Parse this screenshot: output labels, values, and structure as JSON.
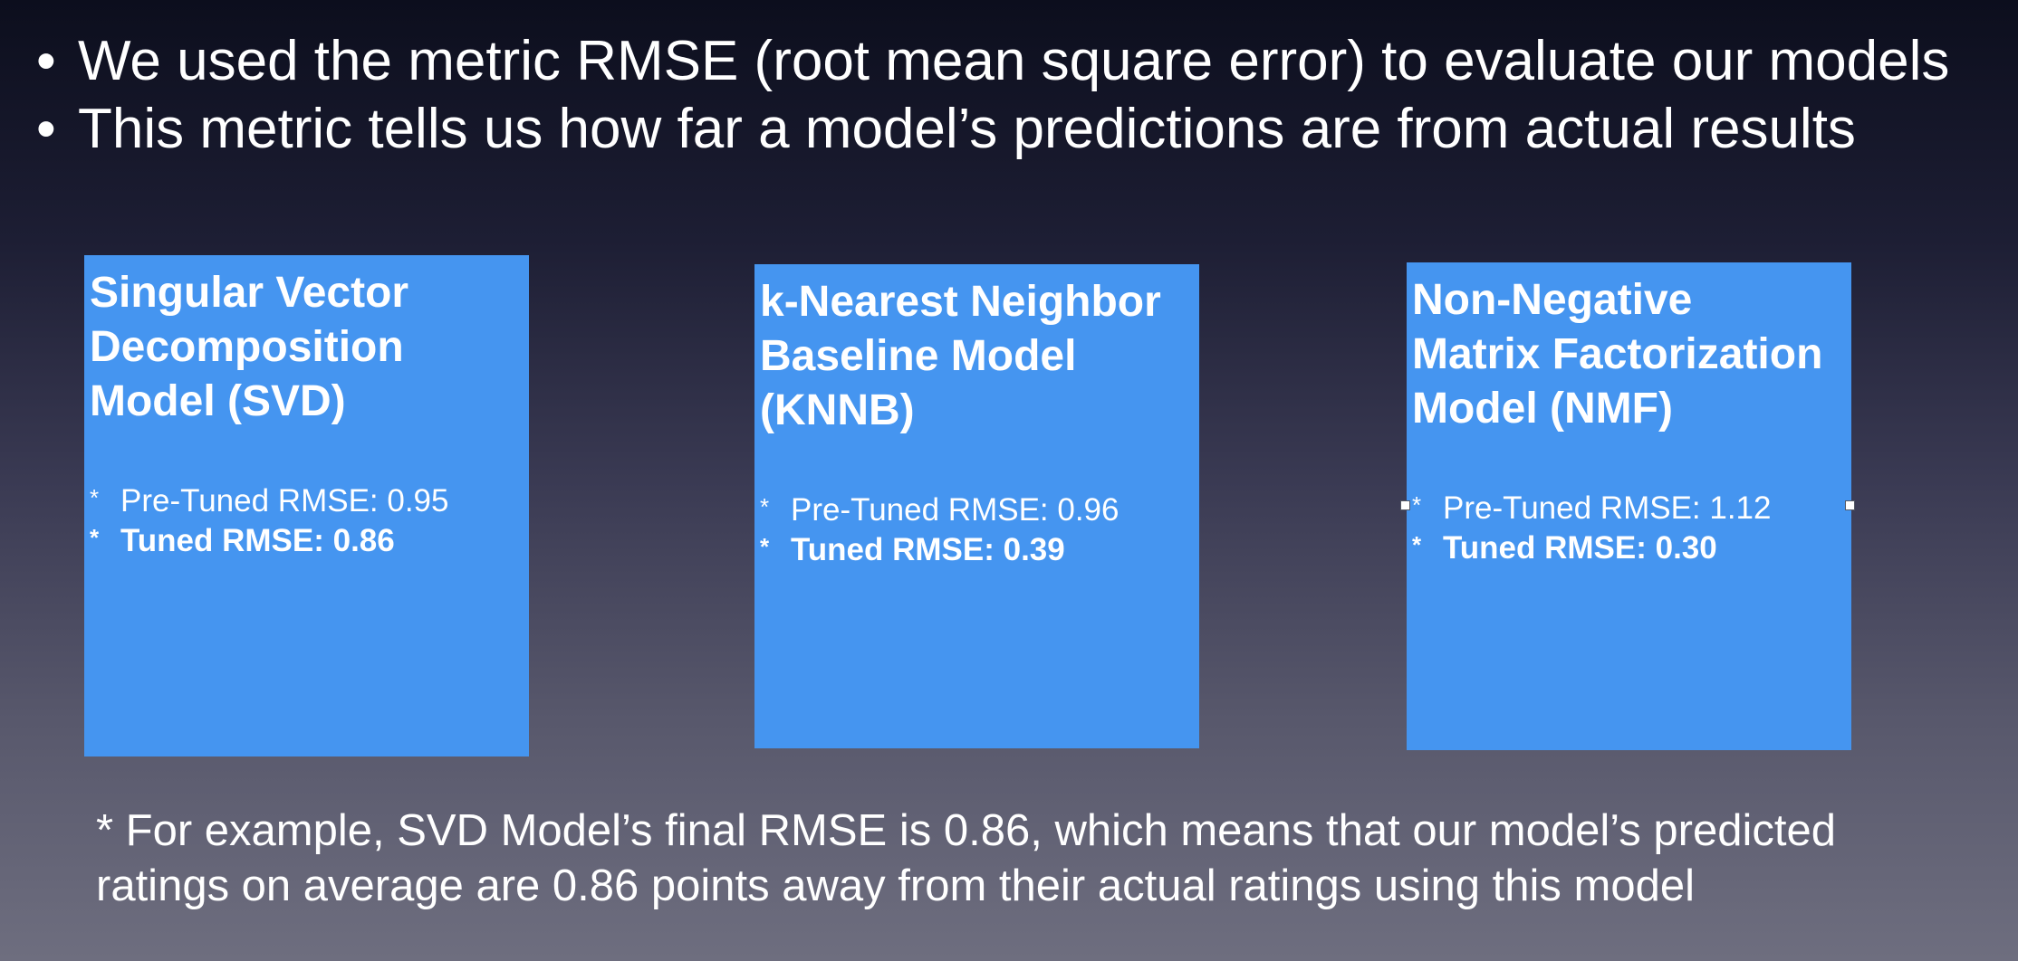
{
  "slide": {
    "bullets": [
      "We used the metric RMSE (root mean square error) to evaluate our models",
      "This metric tells us how far a model’s predictions are from actual results"
    ],
    "cards": [
      {
        "title_lines": [
          "Singular Vector",
          "Decomposition",
          "Model (SVD)"
        ],
        "pre_tuned": "Pre-Tuned RMSE: 0.95",
        "tuned": "Tuned RMSE: 0.86"
      },
      {
        "title_lines": [
          "k-Nearest Neighbor",
          "Baseline Model",
          "(KNNB)"
        ],
        "pre_tuned": "Pre-Tuned RMSE: 0.96",
        "tuned": "Tuned RMSE: 0.39"
      },
      {
        "title_lines": [
          "Non-Negative",
          "Matrix Factorization",
          "Model (NMF)"
        ],
        "pre_tuned": "Pre-Tuned RMSE: 1.12",
        "tuned": "Tuned RMSE: 0.30"
      }
    ],
    "footnote_lines": [
      "* For example, SVD Model’s final RMSE is 0.86, which means that our model’s predicted",
      "ratings on average are 0.86 points away from their actual ratings using this model"
    ],
    "colors": {
      "card_fill": "#4595f0",
      "text": "#ffffff"
    }
  }
}
